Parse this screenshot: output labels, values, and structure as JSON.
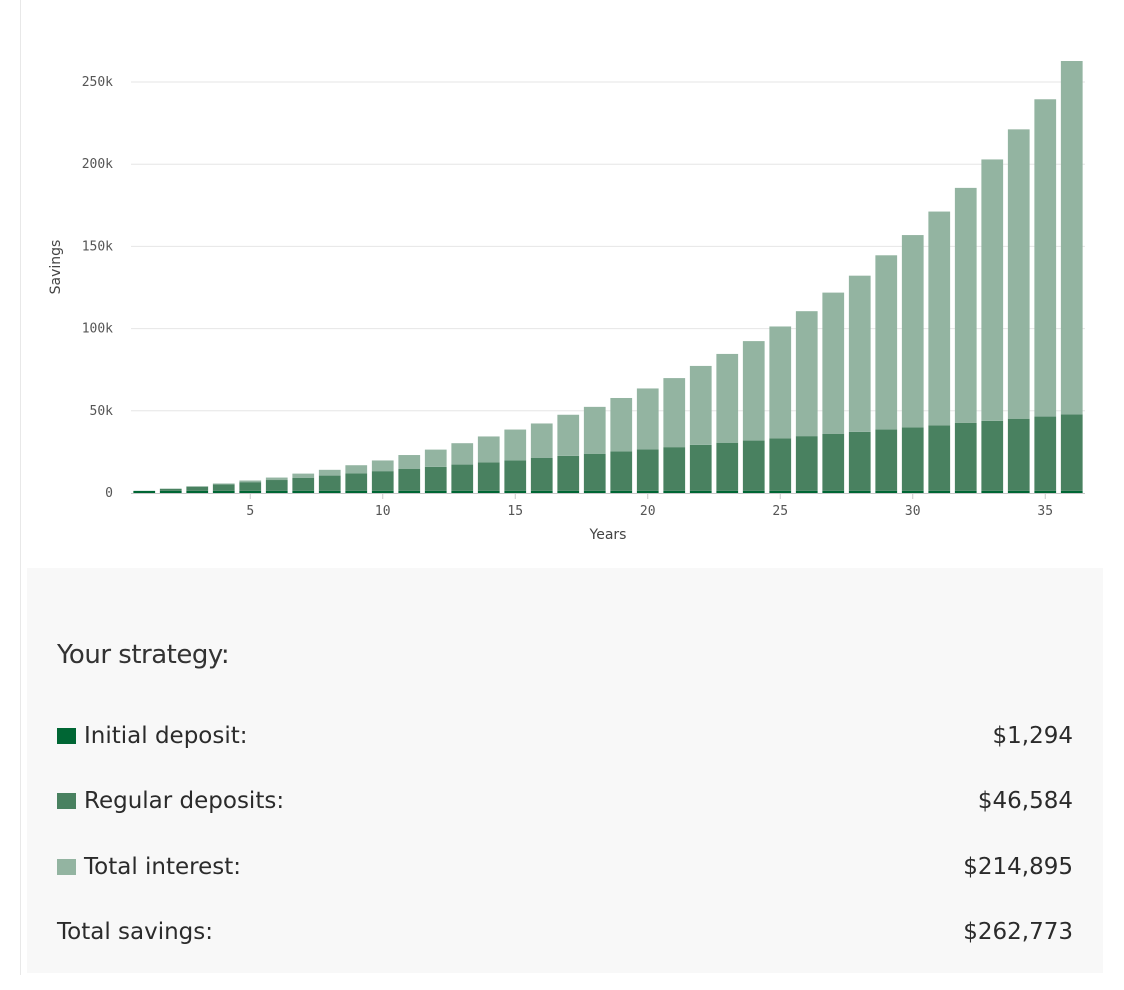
{
  "colors": {
    "initial": "#006634",
    "regular": "#498160",
    "interest": "#93b4a1",
    "grid": "#e6e6e6",
    "axis": "#c8c8c8"
  },
  "chart_data": {
    "type": "bar",
    "stacked": true,
    "xlabel": "Years",
    "ylabel": "Savings",
    "ylim": [
      0,
      262773
    ],
    "yticks": [
      0,
      50000,
      100000,
      150000,
      200000,
      250000
    ],
    "ytick_labels": [
      "0",
      "50k",
      "100k",
      "150k",
      "200k",
      "250k"
    ],
    "xticks": [
      5,
      10,
      15,
      20,
      25,
      30,
      35
    ],
    "xtick_labels": [
      "5",
      "10",
      "15",
      "20",
      "25",
      "30",
      "35"
    ],
    "categories": [
      1,
      2,
      3,
      4,
      5,
      6,
      7,
      8,
      9,
      10,
      11,
      12,
      13,
      14,
      15,
      16,
      17,
      18,
      19,
      20,
      21,
      22,
      23,
      24,
      25,
      26,
      27,
      28,
      29,
      30,
      31,
      32,
      33,
      34,
      35,
      36
    ],
    "series": [
      {
        "name": "Initial deposit",
        "values": [
          1294,
          1294,
          1294,
          1294,
          1294,
          1294,
          1294,
          1294,
          1294,
          1294,
          1294,
          1294,
          1294,
          1294,
          1294,
          1294,
          1294,
          1294,
          1294,
          1294,
          1294,
          1294,
          1294,
          1294,
          1294,
          1294,
          1294,
          1294,
          1294,
          1294,
          1294,
          1294,
          1294,
          1294,
          1294,
          1294
        ]
      },
      {
        "name": "Regular deposits",
        "values": [
          0,
          1300,
          2600,
          4000,
          5300,
          6600,
          8000,
          9300,
          10600,
          12000,
          13300,
          14600,
          16000,
          17300,
          18600,
          20000,
          21300,
          22600,
          24000,
          25300,
          26600,
          28000,
          29300,
          30600,
          32000,
          33300,
          34600,
          35900,
          37300,
          38600,
          39900,
          41300,
          42600,
          43900,
          45200,
          46584
        ]
      },
      {
        "name": "Total interest",
        "values": [
          0,
          0,
          200,
          500,
          1000,
          1500,
          2500,
          3500,
          5000,
          6500,
          8500,
          10500,
          13000,
          15800,
          18700,
          21000,
          25000,
          28500,
          32500,
          37000,
          42000,
          48000,
          54000,
          60500,
          68000,
          76000,
          86000,
          95000,
          106000,
          117000,
          130000,
          143000,
          159000,
          176000,
          193000,
          214895
        ]
      }
    ]
  },
  "summary": {
    "title": "Your strategy:",
    "initial_label": "Initial deposit:",
    "initial_value": "$1,294",
    "regular_label": "Regular deposits:",
    "regular_value": "$46,584",
    "interest_label": "Total interest:",
    "interest_value": "$214,895",
    "total_label": "Total savings:",
    "total_value": "$262,773"
  }
}
